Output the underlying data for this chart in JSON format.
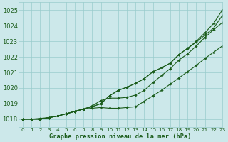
{
  "title": "Graphe pression niveau de la mer (hPa)",
  "bg_color": "#cce8ea",
  "grid_color": "#99cccc",
  "line_color": "#1a5c1a",
  "xlim": [
    -0.5,
    23
  ],
  "ylim": [
    1017.5,
    1025.5
  ],
  "yticks": [
    1018,
    1019,
    1020,
    1021,
    1022,
    1023,
    1024,
    1025
  ],
  "xticks": [
    0,
    1,
    2,
    3,
    4,
    5,
    6,
    7,
    8,
    9,
    10,
    11,
    12,
    13,
    14,
    15,
    16,
    17,
    18,
    19,
    20,
    21,
    22,
    23
  ],
  "series": [
    [
      1018.0,
      1018.0,
      1018.0,
      1018.1,
      1018.2,
      1018.35,
      1018.5,
      1018.65,
      1018.8,
      1019.0,
      1019.5,
      1019.85,
      1020.05,
      1020.3,
      1020.6,
      1021.05,
      1021.3,
      1021.6,
      1022.15,
      1022.55,
      1023.0,
      1023.55,
      1024.15,
      1025.0
    ],
    [
      1018.0,
      1018.0,
      1018.0,
      1018.1,
      1018.2,
      1018.35,
      1018.5,
      1018.65,
      1018.8,
      1019.0,
      1019.5,
      1019.85,
      1020.05,
      1020.3,
      1020.6,
      1021.05,
      1021.3,
      1021.6,
      1022.15,
      1022.55,
      1022.95,
      1023.4,
      1023.85,
      1024.65
    ],
    [
      1018.0,
      1018.0,
      1018.0,
      1018.1,
      1018.2,
      1018.35,
      1018.5,
      1018.65,
      1018.85,
      1019.2,
      1019.35,
      1019.35,
      1019.4,
      1019.55,
      1019.85,
      1020.35,
      1020.8,
      1021.25,
      1021.8,
      1022.2,
      1022.7,
      1023.25,
      1023.75,
      1024.2
    ],
    [
      1018.0,
      1018.0,
      1018.05,
      1018.1,
      1018.2,
      1018.35,
      1018.5,
      1018.65,
      1018.7,
      1018.75,
      1018.7,
      1018.7,
      1018.75,
      1018.8,
      1019.15,
      1019.5,
      1019.85,
      1020.25,
      1020.65,
      1021.05,
      1021.45,
      1021.9,
      1022.3,
      1022.7
    ]
  ]
}
